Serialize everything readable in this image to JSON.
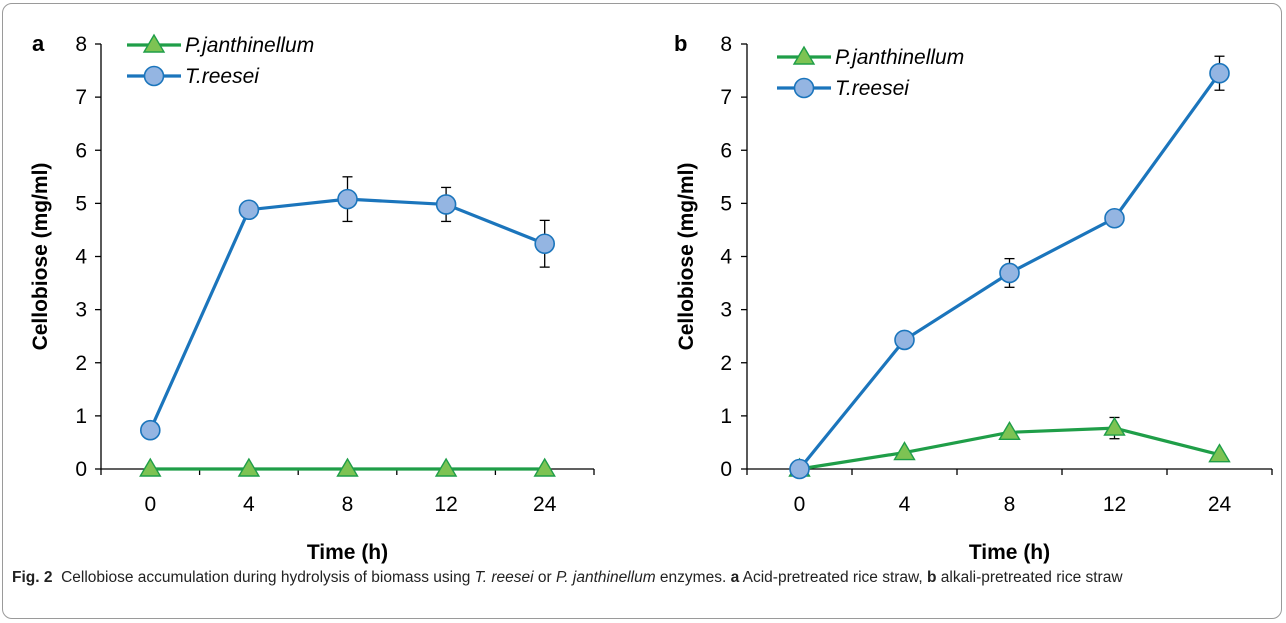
{
  "chart_data": [
    {
      "panel": "a",
      "type": "line",
      "xlabel": "Time (h)",
      "ylabel": "Cellobiose (mg/ml)",
      "categories": [
        "0",
        "4",
        "8",
        "12",
        "24"
      ],
      "ylim": [
        0,
        8
      ],
      "yticks": [
        0,
        1,
        2,
        3,
        4,
        5,
        6,
        7,
        8
      ],
      "legend_position": "top-left",
      "grid": false,
      "series": [
        {
          "name": "P.janthinellum",
          "marker": "triangle",
          "color": "#1f9e48",
          "marker_fill": "#7dc353",
          "values": [
            0,
            0,
            0,
            0,
            0
          ],
          "errors": [
            0,
            0,
            0,
            0,
            0
          ]
        },
        {
          "name": "T.reesei",
          "marker": "circle",
          "color": "#1b75bc",
          "marker_fill": "#94b5e2",
          "values": [
            0.73,
            4.88,
            5.08,
            4.98,
            4.24
          ],
          "errors": [
            0,
            0,
            0.42,
            0.32,
            0.44
          ]
        }
      ]
    },
    {
      "panel": "b",
      "type": "line",
      "xlabel": "Time (h)",
      "ylabel": "Cellobiose  (mg/ml)",
      "categories": [
        "0",
        "4",
        "8",
        "12",
        "24"
      ],
      "ylim": [
        0,
        8
      ],
      "yticks": [
        0,
        1,
        2,
        3,
        4,
        5,
        6,
        7,
        8
      ],
      "legend_position": "top-left",
      "grid": false,
      "series": [
        {
          "name": "P.janthinellum",
          "marker": "triangle",
          "color": "#1f9e48",
          "marker_fill": "#7dc353",
          "values": [
            0,
            0.31,
            0.69,
            0.77,
            0.27
          ],
          "errors": [
            0,
            0,
            0,
            0.2,
            0
          ]
        },
        {
          "name": "T.reesei",
          "marker": "circle",
          "color": "#1b75bc",
          "marker_fill": "#94b5e2",
          "values": [
            0,
            2.43,
            3.69,
            4.72,
            7.45
          ],
          "errors": [
            0,
            0,
            0.27,
            0,
            0.32
          ]
        }
      ]
    }
  ],
  "caption": {
    "fig_label": "Fig. 2",
    "text_1": "Cellobiose accumulation during hydrolysis of biomass using ",
    "italic_1": "T. reesei",
    "text_2": " or ",
    "italic_2": "P. janthinellum",
    "text_3": " enzymes. ",
    "bold_a": "a",
    "text_4": " Acid-pretreated rice straw, ",
    "bold_b": "b",
    "text_5": " alkali-pretreated rice straw"
  }
}
